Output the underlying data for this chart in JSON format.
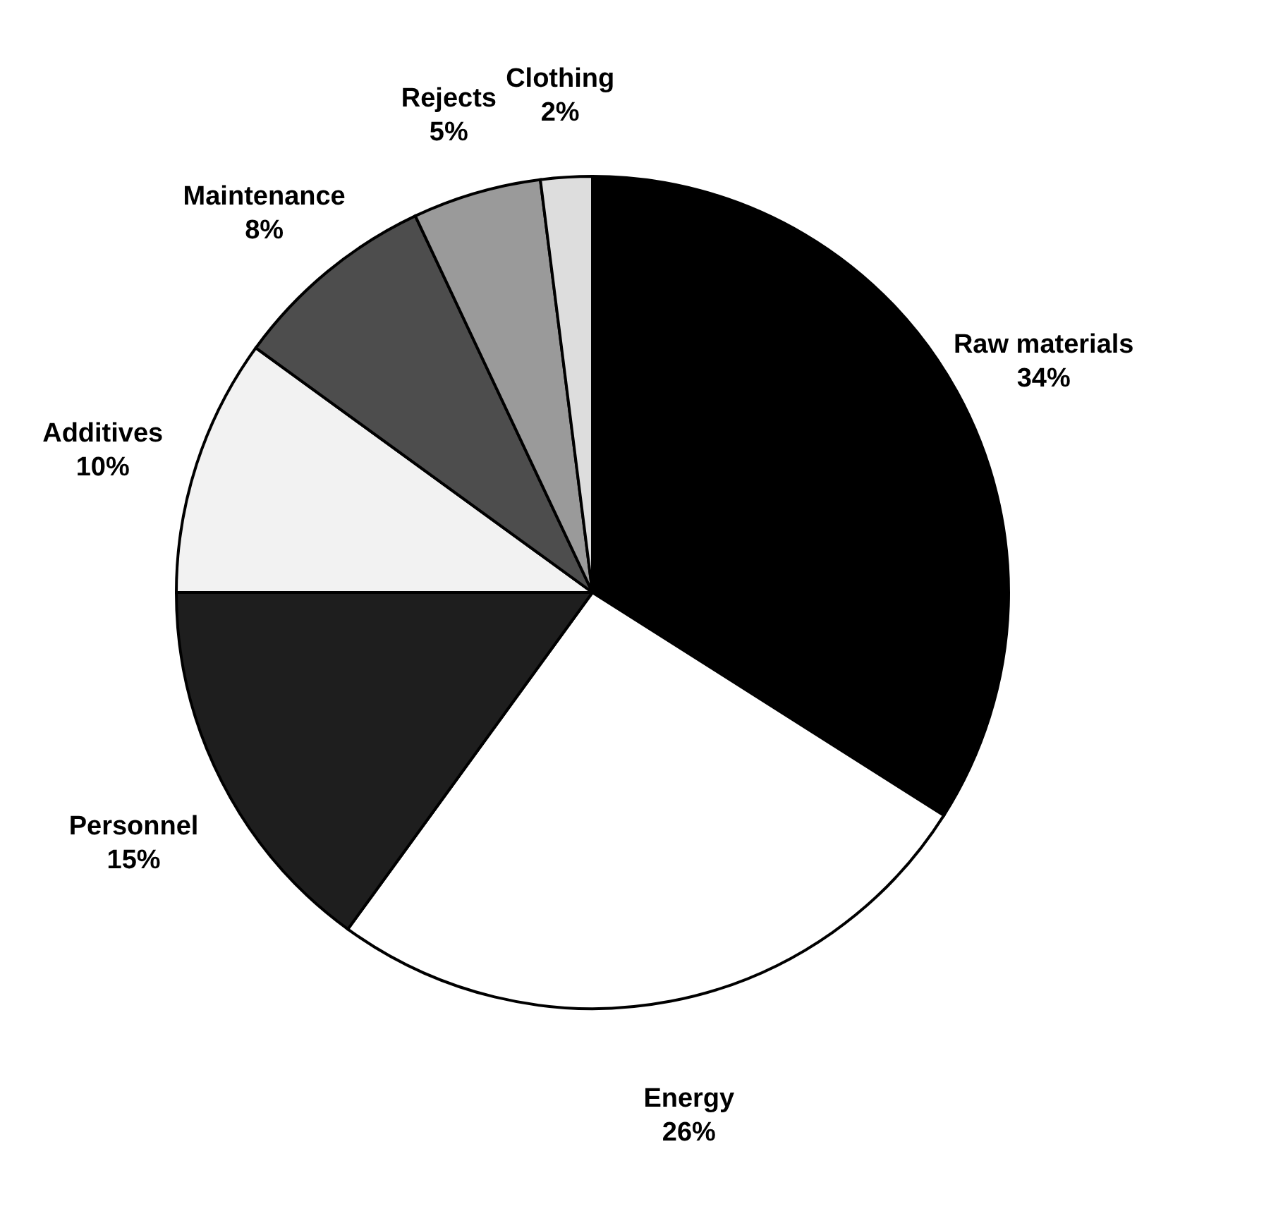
{
  "chart_data": {
    "type": "pie",
    "categories": [
      "Raw materials",
      "Energy",
      "Personnel",
      "Additives",
      "Maintenance",
      "Rejects",
      "Clothing"
    ],
    "values": [
      34,
      26,
      15,
      10,
      8,
      5,
      2
    ],
    "value_labels": [
      "34%",
      "26%",
      "15%",
      "10%",
      "8%",
      "5%",
      "2%"
    ],
    "colors": [
      "#000000",
      "#ffffff",
      "#1e1e1e",
      "#f2f2f2",
      "#4d4d4d",
      "#9a9a9a",
      "#dddddd"
    ],
    "legend": false
  }
}
